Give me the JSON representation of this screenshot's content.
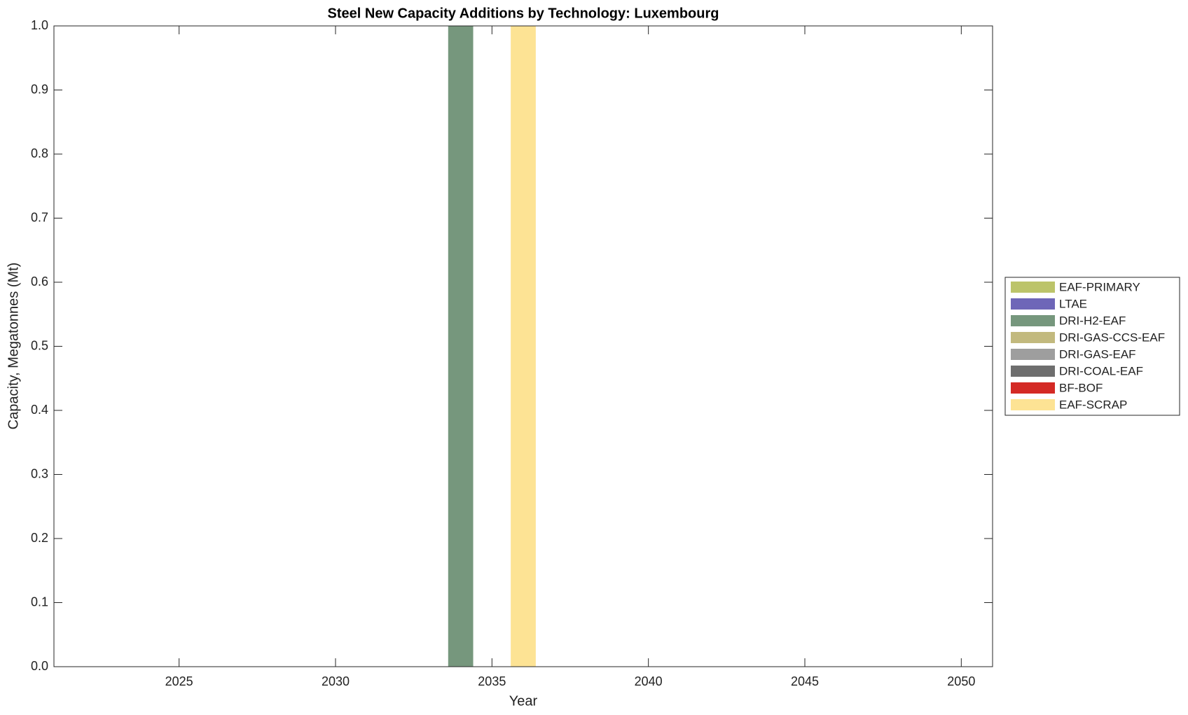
{
  "chart_data": {
    "type": "bar",
    "stacked": true,
    "title": "Steel New Capacity Additions by Technology: Luxembourg",
    "x_label": "Year",
    "y_label": "Capacity, Megatonnes (Mt)",
    "x": [
      2034,
      2036
    ],
    "series": [
      {
        "name": "EAF-PRIMARY",
        "color": "#bcc46a",
        "values": [
          0,
          0
        ]
      },
      {
        "name": "LTAE",
        "color": "#6e66b8",
        "values": [
          0,
          0
        ]
      },
      {
        "name": "DRI-H2-EAF",
        "color": "#76977d",
        "values": [
          1,
          0
        ]
      },
      {
        "name": "DRI-GAS-CCS-EAF",
        "color": "#c2b97e",
        "values": [
          0,
          0
        ]
      },
      {
        "name": "DRI-GAS-EAF",
        "color": "#9e9e9e",
        "values": [
          0,
          0
        ]
      },
      {
        "name": "DRI-COAL-EAF",
        "color": "#6e6e6e",
        "values": [
          0,
          0
        ]
      },
      {
        "name": "BF-BOF",
        "color": "#d42a25",
        "values": [
          0,
          0
        ]
      },
      {
        "name": "EAF-SCRAP",
        "color": "#fde394",
        "values": [
          0,
          1
        ]
      }
    ],
    "xlim": [
      2021,
      2051
    ],
    "xticks": [
      2025,
      2030,
      2035,
      2040,
      2045,
      2050
    ],
    "ylim": [
      0,
      1
    ],
    "yticks": [
      {
        "value": 0,
        "label": "0.0"
      },
      0.1,
      0.2,
      0.3,
      0.4,
      0.5,
      0.6,
      0.7,
      0.8,
      0.9,
      {
        "value": 1,
        "label": "1.0"
      }
    ],
    "bar_width": 0.8,
    "legend": "outside-right"
  }
}
